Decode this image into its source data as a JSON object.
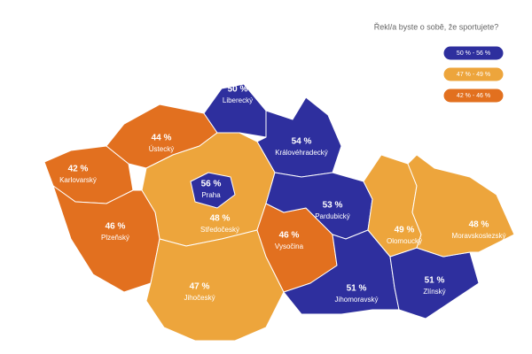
{
  "title": "Řekl/a byste o sobě, že sportujete?",
  "legend": [
    {
      "label": "50 % - 56 %",
      "range": [
        50,
        56
      ],
      "color": "#2e2f9e"
    },
    {
      "label": "47 % - 49 %",
      "range": [
        47,
        49
      ],
      "color": "#eda53c"
    },
    {
      "label": "42 % - 46 %",
      "range": [
        42,
        46
      ],
      "color": "#e2701f"
    }
  ],
  "regions": [
    {
      "name": "Karlovarský",
      "value": 42,
      "value_label": "42 %"
    },
    {
      "name": "Ústecký",
      "value": 44,
      "value_label": "44 %"
    },
    {
      "name": "Liberecký",
      "value": 50,
      "value_label": "50 %"
    },
    {
      "name": "Královéhradecký",
      "value": 54,
      "value_label": "54 %"
    },
    {
      "name": "Praha",
      "value": 56,
      "value_label": "56 %"
    },
    {
      "name": "Středočeský",
      "value": 48,
      "value_label": "48 %"
    },
    {
      "name": "Plzeňský",
      "value": 46,
      "value_label": "46 %"
    },
    {
      "name": "Jihočeský",
      "value": 47,
      "value_label": "47 %"
    },
    {
      "name": "Vysočina",
      "value": 46,
      "value_label": "46 %"
    },
    {
      "name": "Pardubický",
      "value": 53,
      "value_label": "53 %"
    },
    {
      "name": "Jihomoravský",
      "value": 51,
      "value_label": "51 %"
    },
    {
      "name": "Zlínský",
      "value": 51,
      "value_label": "51 %"
    },
    {
      "name": "Olomoucký",
      "value": 49,
      "value_label": "49 %"
    },
    {
      "name": "Moravskoslezský",
      "value": 48,
      "value_label": "48 %"
    }
  ]
}
